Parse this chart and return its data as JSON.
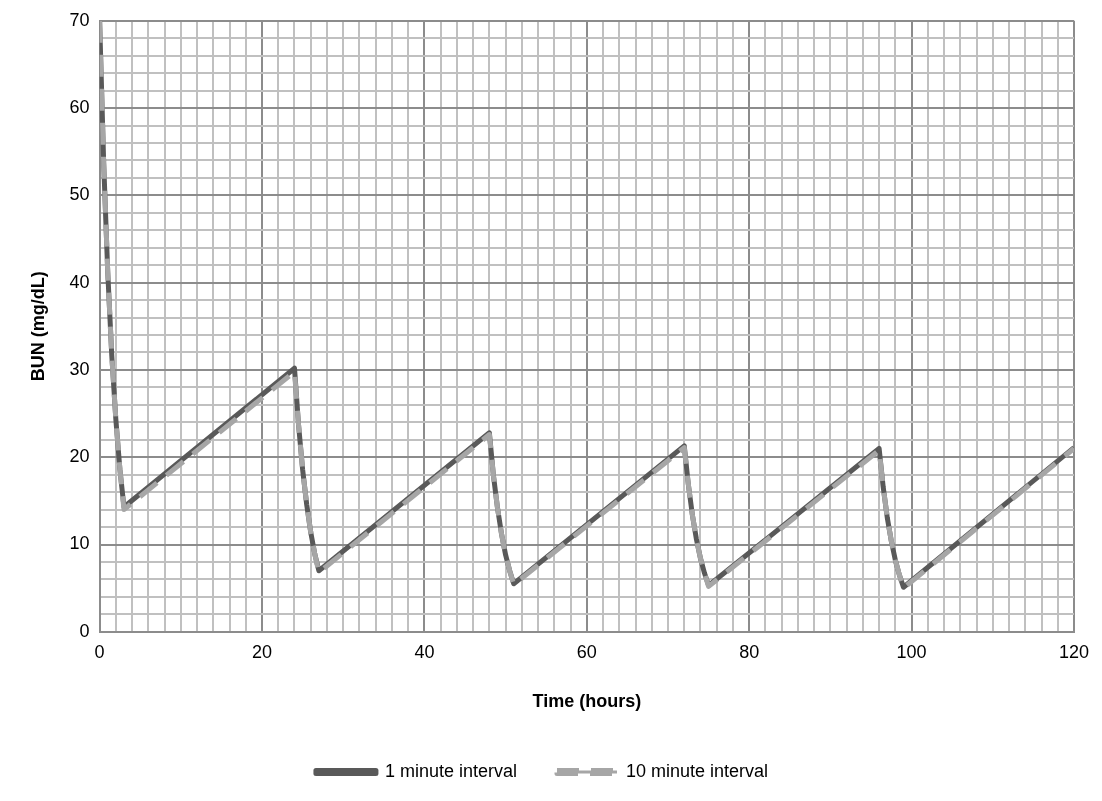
{
  "chart_data": {
    "type": "line",
    "xlabel": "Time (hours)",
    "ylabel": "BUN (mg/dL)",
    "xlim": [
      0,
      120
    ],
    "ylim": [
      0,
      70
    ],
    "xticks": [
      0,
      {
        "value": 2,
        "label": null
      },
      {
        "value": 4,
        "label": null
      },
      {
        "value": 6,
        "label": null
      },
      {
        "value": 8,
        "label": null
      },
      {
        "value": 10,
        "label": null
      },
      {
        "value": 12,
        "label": null
      },
      {
        "value": 14,
        "label": null
      },
      {
        "value": 16,
        "label": null
      },
      {
        "value": 18,
        "label": null
      },
      20,
      {
        "value": 22,
        "label": null
      },
      {
        "value": 24,
        "label": null
      },
      {
        "value": 26,
        "label": null
      },
      {
        "value": 28,
        "label": null
      },
      {
        "value": 30,
        "label": null
      },
      {
        "value": 32,
        "label": null
      },
      {
        "value": 34,
        "label": null
      },
      {
        "value": 36,
        "label": null
      },
      {
        "value": 38,
        "label": null
      },
      40,
      {
        "value": 42,
        "label": null
      },
      {
        "value": 44,
        "label": null
      },
      {
        "value": 46,
        "label": null
      },
      {
        "value": 48,
        "label": null
      },
      {
        "value": 50,
        "label": null
      },
      {
        "value": 52,
        "label": null
      },
      {
        "value": 54,
        "label": null
      },
      {
        "value": 56,
        "label": null
      },
      {
        "value": 58,
        "label": null
      },
      60,
      {
        "value": 62,
        "label": null
      },
      {
        "value": 64,
        "label": null
      },
      {
        "value": 66,
        "label": null
      },
      {
        "value": 68,
        "label": null
      },
      {
        "value": 70,
        "label": null
      },
      {
        "value": 72,
        "label": null
      },
      {
        "value": 74,
        "label": null
      },
      {
        "value": 76,
        "label": null
      },
      {
        "value": 78,
        "label": null
      },
      80,
      {
        "value": 82,
        "label": null
      },
      {
        "value": 84,
        "label": null
      },
      {
        "value": 86,
        "label": null
      },
      {
        "value": 88,
        "label": null
      },
      {
        "value": 90,
        "label": null
      },
      {
        "value": 92,
        "label": null
      },
      {
        "value": 94,
        "label": null
      },
      {
        "value": 96,
        "label": null
      },
      {
        "value": 98,
        "label": null
      },
      100,
      {
        "value": 102,
        "label": null
      },
      {
        "value": 104,
        "label": null
      },
      {
        "value": 106,
        "label": null
      },
      {
        "value": 108,
        "label": null
      },
      {
        "value": 110,
        "label": null
      },
      {
        "value": 112,
        "label": null
      },
      {
        "value": 114,
        "label": null
      },
      {
        "value": 116,
        "label": null
      },
      {
        "value": 118,
        "label": null
      },
      120
    ],
    "yticks": [
      0,
      {
        "value": 2,
        "label": null
      },
      {
        "value": 4,
        "label": null
      },
      {
        "value": 6,
        "label": null
      },
      {
        "value": 8,
        "label": null
      },
      10,
      {
        "value": 12,
        "label": null
      },
      {
        "value": 14,
        "label": null
      },
      {
        "value": 16,
        "label": null
      },
      {
        "value": 18,
        "label": null
      },
      20,
      {
        "value": 22,
        "label": null
      },
      {
        "value": 24,
        "label": null
      },
      {
        "value": 26,
        "label": null
      },
      {
        "value": 28,
        "label": null
      },
      30,
      {
        "value": 32,
        "label": null
      },
      {
        "value": 34,
        "label": null
      },
      {
        "value": 36,
        "label": null
      },
      {
        "value": 38,
        "label": null
      },
      40,
      {
        "value": 42,
        "label": null
      },
      {
        "value": 44,
        "label": null
      },
      {
        "value": 46,
        "label": null
      },
      {
        "value": 48,
        "label": null
      },
      50,
      {
        "value": 52,
        "label": null
      },
      {
        "value": 54,
        "label": null
      },
      {
        "value": 56,
        "label": null
      },
      {
        "value": 58,
        "label": null
      },
      60,
      {
        "value": 62,
        "label": null
      },
      {
        "value": 64,
        "label": null
      },
      {
        "value": 66,
        "label": null
      },
      {
        "value": 68,
        "label": null
      },
      70
    ],
    "grid": true,
    "legend": "bottom",
    "marker": "none",
    "x": [
      0,
      0.5,
      1,
      1.5,
      2,
      2.5,
      3,
      24,
      24.5,
      25,
      25.5,
      26,
      26.5,
      27,
      48,
      48.5,
      49,
      49.5,
      50,
      50.5,
      51,
      72,
      72.5,
      73,
      73.5,
      74,
      74.5,
      75,
      96,
      96.5,
      97,
      97.5,
      98,
      98.5,
      99,
      120
    ],
    "series": [
      {
        "name": "1 minute interval",
        "color": "#595959",
        "line_style": "solid",
        "values": [
          70,
          53.7,
          41.2,
          31.6,
          24.3,
          18.6,
          14.3,
          30.2,
          23.7,
          18.6,
          14.6,
          11.4,
          8.9,
          7.0,
          22.8,
          17.9,
          14.2,
          11.2,
          8.8,
          7.0,
          5.5,
          21.3,
          16.9,
          13.4,
          10.6,
          8.4,
          6.7,
          5.3,
          21.0,
          16.6,
          13.1,
          10.4,
          8.2,
          6.5,
          5.1,
          21.1
        ]
      },
      {
        "name": "10 minute interval",
        "color": "#a6a6a6",
        "line_style": "dashed",
        "values": [
          70,
          53.7,
          41.2,
          31.6,
          24.3,
          18.6,
          14.0,
          29.8,
          23.7,
          18.6,
          14.6,
          11.4,
          8.9,
          6.8,
          22.6,
          17.9,
          14.2,
          11.2,
          8.8,
          7.0,
          5.4,
          21.1,
          16.9,
          13.4,
          10.6,
          8.4,
          6.7,
          5.2,
          20.8,
          16.6,
          13.1,
          10.4,
          8.2,
          6.5,
          5.0,
          21.0
        ]
      }
    ]
  }
}
